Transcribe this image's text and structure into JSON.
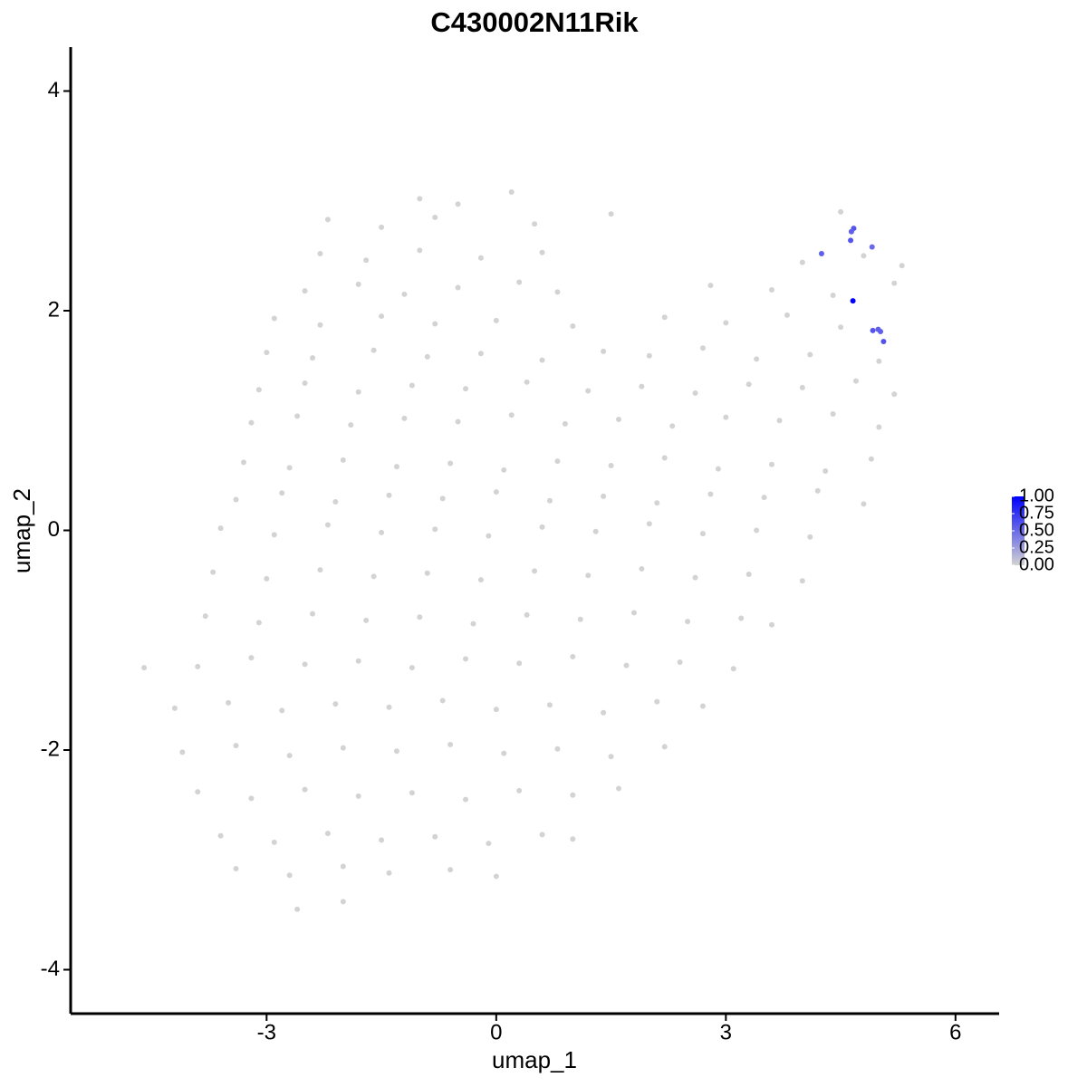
{
  "chart_data": {
    "type": "scatter",
    "title": "C430002N11Rik",
    "x_label": "umap_1",
    "y_label": "umap_2",
    "xlim": [
      -5.56,
      6.57
    ],
    "ylim": [
      -4.4,
      4.4
    ],
    "xticks": [
      -3,
      0,
      3,
      6
    ],
    "yticks": [
      -4,
      -2,
      0,
      2,
      4
    ],
    "grid": false,
    "legend": "right",
    "color_scale": {
      "low": "#d3d3d3",
      "high": "#0000ff",
      "lim": [
        0,
        1
      ],
      "ticks": [
        {
          "value": 0,
          "label": "0.00"
        },
        {
          "value": 0.25,
          "label": "0.25"
        },
        {
          "value": 0.5,
          "label": "0.50"
        },
        {
          "value": 0.75,
          "label": "0.75"
        },
        {
          "value": 1,
          "label": "1.00"
        }
      ]
    },
    "x": [
      -1.0,
      0.2,
      -0.5,
      -2.2,
      -1.5,
      -0.8,
      0.5,
      1.5,
      4.5,
      -2.3,
      -1.7,
      -1.0,
      -0.2,
      0.6,
      4.0,
      4.8,
      5.3,
      -2.5,
      -1.8,
      -1.2,
      -0.5,
      0.3,
      0.8,
      2.8,
      3.6,
      4.4,
      5.2,
      -2.9,
      -2.3,
      -1.5,
      -0.8,
      0.0,
      1.0,
      2.2,
      3.0,
      3.8,
      4.5,
      -3.0,
      -2.4,
      -1.6,
      -0.9,
      -0.2,
      0.6,
      1.4,
      2.0,
      2.7,
      3.4,
      4.1,
      5.0,
      -3.1,
      -2.5,
      -1.8,
      -1.1,
      -0.4,
      0.4,
      1.2,
      1.9,
      2.6,
      3.3,
      4.0,
      4.7,
      5.2,
      -3.2,
      -2.6,
      -1.9,
      -1.2,
      -0.5,
      0.2,
      0.9,
      1.6,
      2.3,
      3.0,
      3.7,
      4.4,
      5.0,
      -3.3,
      -2.7,
      -2.0,
      -1.3,
      -0.6,
      0.1,
      0.8,
      1.5,
      2.2,
      2.9,
      3.6,
      4.3,
      4.9,
      -3.4,
      -2.8,
      -2.1,
      -1.4,
      -0.7,
      0.0,
      0.7,
      1.4,
      2.1,
      2.8,
      3.5,
      4.2,
      4.8,
      -3.6,
      -2.9,
      -2.2,
      -1.5,
      -0.8,
      -0.1,
      0.6,
      1.3,
      2.0,
      2.7,
      3.4,
      4.1,
      -3.7,
      -3.0,
      -2.3,
      -1.6,
      -0.9,
      -0.2,
      0.5,
      1.2,
      1.9,
      2.6,
      3.3,
      4.0,
      -3.8,
      -3.1,
      -2.4,
      -1.7,
      -1.0,
      -0.3,
      0.4,
      1.1,
      1.8,
      2.5,
      3.2,
      3.6,
      -4.6,
      -3.9,
      -3.2,
      -2.5,
      -1.8,
      -1.1,
      -0.4,
      0.3,
      1.0,
      1.7,
      2.4,
      3.1,
      -4.2,
      -3.5,
      -2.8,
      -2.1,
      -1.4,
      -0.7,
      0.0,
      0.7,
      1.4,
      2.1,
      2.7,
      -4.1,
      -3.4,
      -2.7,
      -2.0,
      -1.3,
      -0.6,
      0.1,
      0.8,
      1.5,
      2.2,
      -3.9,
      -3.2,
      -2.5,
      -1.8,
      -1.1,
      -0.4,
      0.3,
      1.0,
      1.6,
      -3.6,
      -2.9,
      -2.2,
      -1.5,
      -0.8,
      -0.1,
      0.6,
      1.0,
      -3.4,
      -2.7,
      -2.0,
      -1.4,
      -0.6,
      0.0,
      -2.6,
      -2.0,
      4.25,
      4.67,
      4.64,
      4.63,
      4.91,
      4.66,
      4.92,
      4.99,
      5.02,
      5.06
    ],
    "y": [
      3.02,
      3.08,
      2.97,
      2.83,
      2.76,
      2.85,
      2.79,
      2.88,
      2.9,
      2.52,
      2.46,
      2.55,
      2.48,
      2.53,
      2.44,
      2.5,
      2.41,
      2.18,
      2.24,
      2.15,
      2.21,
      2.26,
      2.17,
      2.23,
      2.19,
      2.14,
      2.25,
      1.93,
      1.87,
      1.95,
      1.88,
      1.91,
      1.86,
      1.94,
      1.89,
      1.96,
      1.85,
      1.62,
      1.57,
      1.64,
      1.58,
      1.61,
      1.55,
      1.63,
      1.59,
      1.66,
      1.56,
      1.6,
      1.54,
      1.28,
      1.34,
      1.26,
      1.32,
      1.29,
      1.35,
      1.27,
      1.31,
      1.25,
      1.33,
      1.3,
      1.36,
      1.24,
      0.98,
      1.04,
      0.96,
      1.02,
      0.99,
      1.05,
      0.97,
      1.01,
      0.95,
      1.03,
      1.0,
      1.06,
      0.94,
      0.62,
      0.57,
      0.64,
      0.58,
      0.61,
      0.55,
      0.63,
      0.59,
      0.66,
      0.56,
      0.6,
      0.54,
      0.65,
      0.28,
      0.34,
      0.26,
      0.32,
      0.29,
      0.35,
      0.27,
      0.31,
      0.25,
      0.33,
      0.3,
      0.36,
      0.24,
      0.02,
      -0.04,
      0.05,
      -0.02,
      0.01,
      -0.05,
      0.03,
      -0.01,
      0.06,
      -0.03,
      0.0,
      -0.06,
      -0.38,
      -0.44,
      -0.36,
      -0.42,
      -0.39,
      -0.45,
      -0.37,
      -0.41,
      -0.35,
      -0.43,
      -0.4,
      -0.46,
      -0.78,
      -0.84,
      -0.76,
      -0.82,
      -0.79,
      -0.85,
      -0.77,
      -0.81,
      -0.75,
      -0.83,
      -0.8,
      -0.86,
      -1.25,
      -1.24,
      -1.16,
      -1.22,
      -1.19,
      -1.25,
      -1.17,
      -1.21,
      -1.15,
      -1.23,
      -1.2,
      -1.26,
      -1.62,
      -1.57,
      -1.64,
      -1.58,
      -1.61,
      -1.55,
      -1.63,
      -1.59,
      -1.66,
      -1.56,
      -1.6,
      -2.02,
      -1.96,
      -2.05,
      -1.98,
      -2.01,
      -1.95,
      -2.03,
      -1.99,
      -2.06,
      -1.97,
      -2.38,
      -2.44,
      -2.36,
      -2.42,
      -2.39,
      -2.45,
      -2.37,
      -2.41,
      -2.35,
      -2.78,
      -2.84,
      -2.76,
      -2.82,
      -2.79,
      -2.85,
      -2.77,
      -2.81,
      -3.08,
      -3.14,
      -3.06,
      -3.12,
      -3.09,
      -3.15,
      -3.45,
      -3.38,
      2.52,
      2.75,
      2.72,
      2.64,
      2.58,
      2.09,
      1.82,
      1.83,
      1.81,
      1.72
    ],
    "expression": [
      0,
      0,
      0,
      0,
      0,
      0,
      0,
      0,
      0,
      0,
      0,
      0,
      0,
      0,
      0,
      0,
      0,
      0,
      0,
      0,
      0,
      0,
      0,
      0,
      0,
      0,
      0,
      0,
      0,
      0,
      0,
      0,
      0,
      0,
      0,
      0,
      0,
      0,
      0,
      0,
      0,
      0,
      0,
      0,
      0,
      0,
      0,
      0,
      0,
      0,
      0,
      0,
      0,
      0,
      0,
      0,
      0,
      0,
      0,
      0,
      0,
      0,
      0,
      0,
      0,
      0,
      0,
      0,
      0,
      0,
      0,
      0,
      0,
      0,
      0,
      0,
      0,
      0,
      0,
      0,
      0,
      0,
      0,
      0,
      0,
      0,
      0,
      0,
      0,
      0,
      0,
      0,
      0,
      0,
      0,
      0,
      0,
      0,
      0,
      0,
      0,
      0,
      0,
      0,
      0,
      0,
      0,
      0,
      0,
      0,
      0,
      0,
      0,
      0,
      0,
      0,
      0,
      0,
      0,
      0,
      0,
      0,
      0,
      0,
      0,
      0,
      0,
      0,
      0,
      0,
      0,
      0,
      0,
      0,
      0,
      0,
      0,
      0,
      0,
      0,
      0,
      0,
      0,
      0,
      0,
      0,
      0,
      0,
      0,
      0,
      0,
      0,
      0,
      0,
      0,
      0,
      0,
      0,
      0,
      0,
      0,
      0,
      0,
      0,
      0,
      0,
      0,
      0,
      0,
      0,
      0,
      0,
      0,
      0,
      0,
      0,
      0,
      0,
      0,
      0,
      0,
      0,
      0,
      0,
      0,
      0,
      0,
      0,
      0,
      0,
      0,
      0,
      0,
      0,
      0,
      0.55,
      0.6,
      0.55,
      0.6,
      0.5,
      1.0,
      0.6,
      0.55,
      0.55,
      0.6
    ]
  }
}
